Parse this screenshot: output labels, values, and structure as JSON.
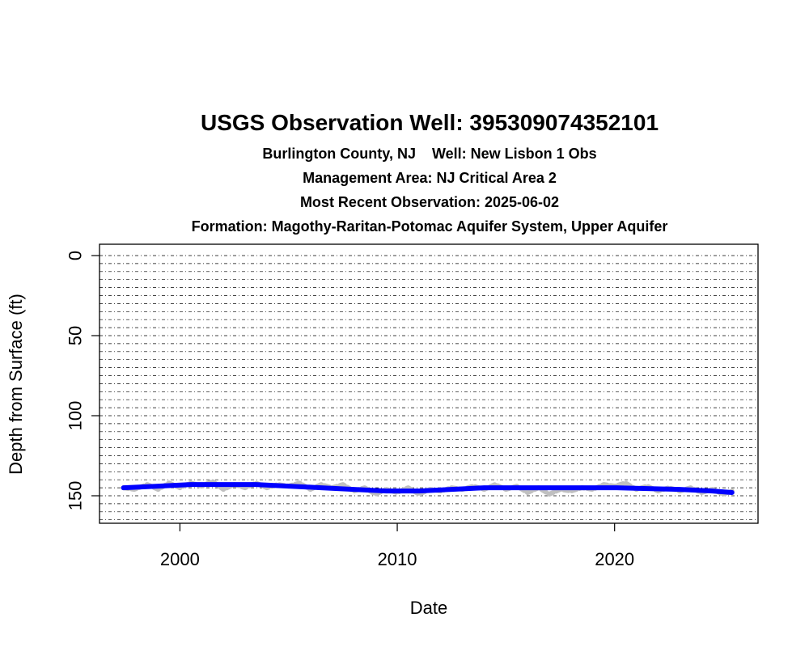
{
  "chart_data": {
    "type": "line",
    "title": "USGS Observation Well:  395309074352101",
    "subtitles": [
      "Burlington County, NJ    Well: New Lisbon 1 Obs",
      "Management Area: NJ Critical Area 2",
      "Most Recent Observation: 2025-06-02",
      "Formation: Magothy-Raritan-Potomac Aquifer System, Upper Aquifer"
    ],
    "xlabel": "Date",
    "ylabel": "Depth from Surface (ft)",
    "xlim": [
      1996.3,
      2026.6
    ],
    "ylim": [
      0,
      166
    ],
    "y_reversed": true,
    "x_ticks": [
      2000,
      2010,
      2020
    ],
    "y_ticks": [
      0,
      50,
      100,
      150
    ],
    "grid": true,
    "grid_interval": 5,
    "series": [
      {
        "color": "#c0c0c0",
        "x": [
          1997.4,
          1997.9,
          1998.5,
          1999.0,
          1999.5,
          2000.0,
          2000.5,
          2001.0,
          2001.5,
          2002.0,
          2002.5,
          2003.0,
          2003.5,
          2004.0,
          2004.5,
          2005.0,
          2005.5,
          2006.0,
          2006.5,
          2007.0,
          2007.5,
          2008.0,
          2008.5,
          2009.0,
          2009.5,
          2010.0,
          2010.5,
          2011.0,
          2011.5,
          2012.0,
          2012.5,
          2013.0,
          2013.5,
          2014.0,
          2014.5,
          2015.0,
          2015.5,
          2016.0,
          2016.5,
          2017.0,
          2017.5,
          2018.0,
          2018.5,
          2019.0,
          2019.5,
          2020.0,
          2020.5,
          2021.0,
          2021.5,
          2022.0,
          2022.5,
          2023.0,
          2023.5,
          2024.0,
          2024.5,
          2025.0,
          2025.4
        ],
        "values": [
          145,
          146,
          143,
          146,
          142,
          145,
          142,
          144,
          141,
          146,
          143,
          145,
          142,
          145,
          143,
          144,
          142,
          146,
          143,
          145,
          143,
          147,
          145,
          149,
          146,
          148,
          145,
          149,
          146,
          147,
          145,
          146,
          144,
          146,
          143,
          146,
          144,
          148,
          145,
          149,
          146,
          147,
          145,
          146,
          143,
          144,
          142,
          146,
          144,
          147,
          145,
          147,
          145,
          148,
          146,
          149,
          147
        ]
      },
      {
        "color": "#0000ff",
        "x": [
          1997.4,
          1999.0,
          2000.5,
          2002.0,
          2003.5,
          2005.0,
          2006.5,
          2008.0,
          2009.5,
          2011.0,
          2012.5,
          2014.0,
          2015.5,
          2017.0,
          2018.5,
          2020.0,
          2021.5,
          2023.0,
          2024.5,
          2025.4
        ],
        "values": [
          145,
          144,
          143,
          143,
          143,
          144,
          145,
          146,
          147,
          147,
          146,
          145,
          145,
          145,
          145,
          145,
          145.5,
          146,
          147,
          148
        ]
      }
    ]
  }
}
